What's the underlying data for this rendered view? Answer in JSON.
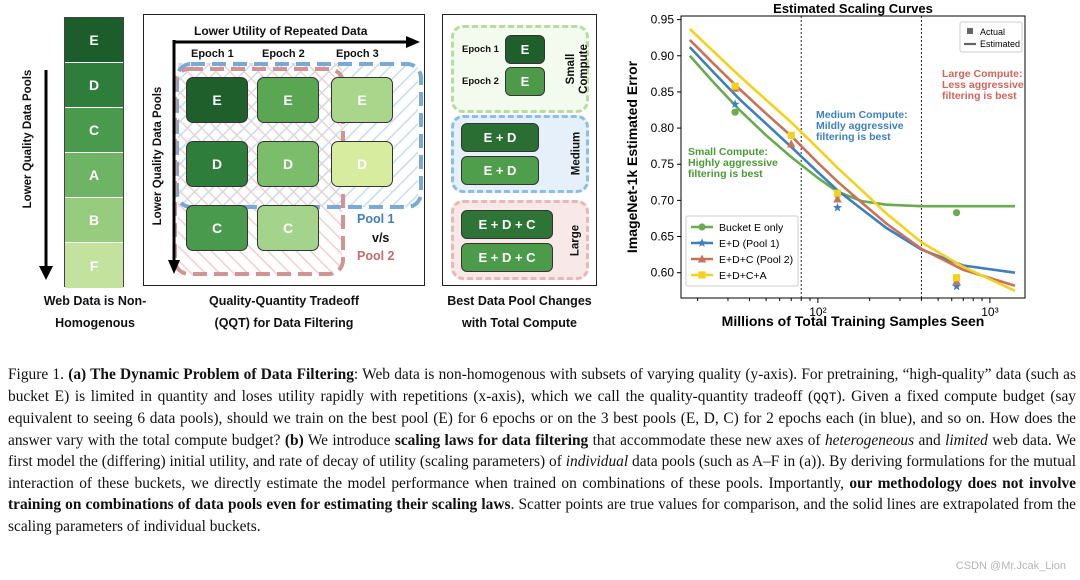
{
  "panel_a": {
    "y_label": "Lower Quality Data Pools",
    "pools": [
      {
        "label": "E",
        "color": "#1b5e2b"
      },
      {
        "label": "D",
        "color": "#2f7d3a"
      },
      {
        "label": "C",
        "color": "#4a9a4e"
      },
      {
        "label": "A",
        "color": "#6db565"
      },
      {
        "label": "B",
        "color": "#97cc7f"
      },
      {
        "label": "F",
        "color": "#c3e29e"
      }
    ],
    "caption_line1": "Web Data is Non-",
    "caption_line2": "Homogenous"
  },
  "panel_qqt": {
    "x_label": "Lower Utility of Repeated Data",
    "y_label": "Lower Quality Data Pools",
    "epochs": [
      "Epoch 1",
      "Epoch 2",
      "Epoch 3"
    ],
    "rows": [
      {
        "label": "E",
        "colors": [
          "#1f5f2c",
          "#5aa653",
          "#a9d68b"
        ]
      },
      {
        "label": "D",
        "colors": [
          "#2f7d3a",
          "#7bbd6a",
          "#d7ec9f"
        ]
      },
      {
        "label": "C",
        "colors": [
          "#4a9a4e",
          "#a4d48c"
        ]
      }
    ],
    "pool1": "Pool 1",
    "vs": "v/s",
    "pool2": "Pool 2",
    "pool1_color": "#5b9bd5",
    "pool2_color": "#c97b7b",
    "caption_line1": "Quality-Quantity Tradeoff",
    "caption_line2": "(QQT) for Data Filtering"
  },
  "panel_compute": {
    "small": {
      "label_l1": "Small",
      "label_l2": "Compute",
      "e1": "Epoch 1",
      "e2": "Epoch 2",
      "block": "E"
    },
    "medium": {
      "label": "Medium",
      "blocks": [
        "E + D",
        "E + D"
      ]
    },
    "large": {
      "label": "Large",
      "blocks": [
        "E + D + C",
        "E + D + C"
      ]
    },
    "caption_line1": "Best Data Pool Changes",
    "caption_line2": "with Total Compute"
  },
  "chart_data": {
    "type": "line",
    "title": "Estimated Scaling Curves",
    "xlabel": "Millions of Total Training Samples Seen",
    "ylabel": "ImageNet-1k Estimated Error",
    "x_scale": "log",
    "xlim": [
      16,
      1600
    ],
    "ylim": [
      0.565,
      0.955
    ],
    "yticks": [
      0.6,
      0.65,
      0.7,
      0.75,
      0.8,
      0.85,
      0.9,
      0.95
    ],
    "xticks": [
      {
        "value": 100,
        "label": "10²"
      },
      {
        "value": 1000,
        "label": "10³"
      }
    ],
    "vlines": [
      80,
      400
    ],
    "marker_legend": {
      "actual": "Actual",
      "estimated": "Estimated"
    },
    "annotations": [
      {
        "lines": [
          "Small Compute:",
          "Highly aggressive",
          "filtering is best"
        ],
        "color": "#4a9a36"
      },
      {
        "lines": [
          "Medium Compute:",
          "Mildly aggressive",
          "filtering is best"
        ],
        "color": "#3d7fbf"
      },
      {
        "lines": [
          "Large Compute:",
          "Less aggressive",
          "filtering is best"
        ],
        "color": "#d0645a"
      }
    ],
    "series": [
      {
        "name": "Bucket E only",
        "color": "#6aaa52",
        "marker": "circle",
        "x": [
          18,
          25,
          35,
          50,
          70,
          100,
          130,
          180,
          250,
          400,
          700,
          1400
        ],
        "y": [
          0.9,
          0.862,
          0.825,
          0.79,
          0.76,
          0.731,
          0.712,
          0.699,
          0.694,
          0.692,
          0.692,
          0.692
        ],
        "points": [
          [
            33,
            0.822
          ],
          [
            130,
            0.708
          ],
          [
            640,
            0.683
          ]
        ]
      },
      {
        "name": "E+D (Pool 1)",
        "color": "#3d7fbf",
        "marker": "star",
        "x": [
          18,
          25,
          35,
          50,
          70,
          100,
          130,
          180,
          250,
          400,
          700,
          1400
        ],
        "y": [
          0.912,
          0.876,
          0.84,
          0.806,
          0.774,
          0.739,
          0.714,
          0.688,
          0.662,
          0.632,
          0.61,
          0.6
        ],
        "points": [
          [
            33,
            0.833
          ],
          [
            130,
            0.69
          ],
          [
            640,
            0.581
          ]
        ]
      },
      {
        "name": "E+D+C (Pool 2)",
        "color": "#c9725a",
        "marker": "triangle",
        "x": [
          18,
          25,
          35,
          50,
          70,
          100,
          130,
          180,
          250,
          400,
          700,
          1400
        ],
        "y": [
          0.922,
          0.888,
          0.854,
          0.82,
          0.789,
          0.752,
          0.726,
          0.697,
          0.668,
          0.633,
          0.604,
          0.582
        ],
        "points": [
          [
            33,
            0.855
          ],
          [
            70,
            0.778
          ],
          [
            130,
            0.702
          ],
          [
            640,
            0.588
          ]
        ]
      },
      {
        "name": "E+D+C+A",
        "color": "#f4d11b",
        "marker": "square",
        "x": [
          18,
          25,
          35,
          50,
          70,
          100,
          130,
          180,
          250,
          400,
          700,
          1400
        ],
        "y": [
          0.937,
          0.905,
          0.872,
          0.839,
          0.808,
          0.772,
          0.745,
          0.714,
          0.682,
          0.642,
          0.608,
          0.575
        ],
        "points": [
          [
            33,
            0.858
          ],
          [
            70,
            0.79
          ],
          [
            130,
            0.71
          ],
          [
            640,
            0.593
          ]
        ]
      }
    ]
  },
  "caption": {
    "fig": "Figure 1.",
    "a_title": "(a) The Dynamic Problem of Data Filtering",
    "t1": ": Web data is non-homogenous with subsets of varying quality (y-axis). For pretraining, “high-quality” data (such as bucket E) is limited in quantity and loses utility rapidly with repetitions (x-axis), which we call the quality-quantity tradeoff (",
    "qqt": "QQT",
    "t2": "). Given a fixed compute budget (say equivalent to seeing 6 data pools), should we train on the best pool (E) for 6 epochs or on the 3 best pools (E, D, C) for 2 epochs each (in blue), and so on. How does the answer vary with the total compute budget? ",
    "b_label": "(b)",
    "t3": " We introduce ",
    "b_bold": "scaling laws for data filtering",
    "t4": " that accommodate these new axes of ",
    "i1": "heterogeneous",
    "t5": " and ",
    "i2": "limited",
    "t6": " web data. We first model the (differing) initial utility, and rate of decay of utility (scaling parameters) of ",
    "i3": "individual",
    "t7": " data pools (such as A–F in (a)). By deriving formulations for the mutual interaction of these buckets, we directly estimate the model performance when trained on combinations of these pools. Importantly, ",
    "b_bold2": "our methodology does not involve training on combinations of data pools even for estimating their scaling laws",
    "t8": ". Scatter points are true values for comparison, and the solid lines are extrapolated from the scaling parameters of individual buckets.",
    "watermark": "CSDN @Mr.Jcak_Lion"
  }
}
